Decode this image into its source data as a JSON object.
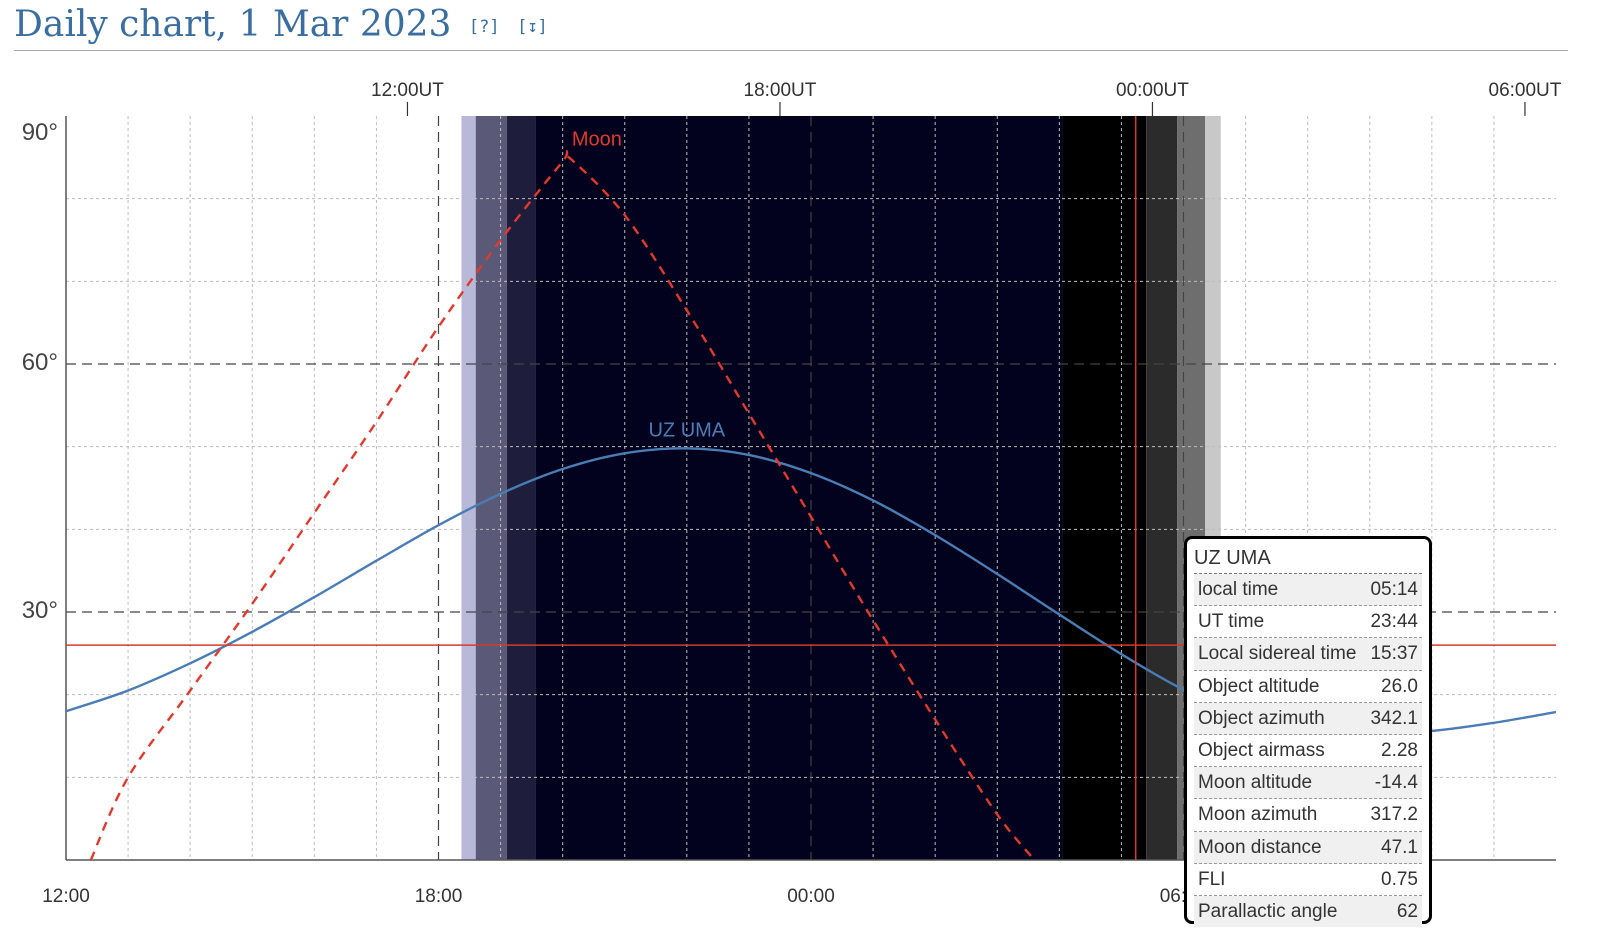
{
  "header": {
    "title": "Daily chart, 1 Mar 2023",
    "help_link": "[?]",
    "download_link": "[↧]"
  },
  "chart_data": {
    "type": "line",
    "title": "Daily chart, 1 Mar 2023",
    "x_unit": "hours (local time, from 12:00 local)",
    "xlim": [
      0,
      24
    ],
    "ylim": [
      0,
      90
    ],
    "bottom_ticks": [
      "12:00",
      "18:00",
      "00:00",
      "06:00"
    ],
    "top_ticks": [
      "12:00UT",
      "18:00UT",
      "00:00UT",
      "06:00UT"
    ],
    "y_ticks": [
      "30°",
      "60°",
      "90°"
    ],
    "series": [
      {
        "name": "UZ UMA",
        "color": "#4a7db5",
        "style": "solid",
        "x": [
          0,
          1,
          2,
          3,
          4,
          5,
          6,
          7,
          8,
          9,
          10,
          11,
          12,
          13,
          14,
          15,
          16,
          17,
          18,
          19,
          20,
          21,
          22,
          23,
          24
        ],
        "y": [
          18.0,
          20.5,
          23.8,
          27.6,
          31.8,
          36.2,
          40.5,
          44.3,
          47.3,
          49.2,
          49.8,
          49.0,
          46.8,
          43.5,
          39.3,
          34.6,
          29.7,
          24.9,
          20.6,
          17.4,
          15.6,
          15.2,
          15.6,
          16.6,
          17.9
        ]
      },
      {
        "name": "Moon",
        "color": "#e03a2e",
        "style": "dashed",
        "x": [
          0.4,
          1,
          2,
          3,
          4,
          5,
          6,
          7,
          8,
          8.1,
          9,
          10,
          11,
          12,
          13,
          14,
          15,
          15.6
        ],
        "y": [
          0,
          10,
          20.5,
          31,
          42,
          53,
          64.5,
          75,
          84.5,
          85,
          78,
          66.5,
          54,
          41.5,
          29,
          17,
          5.5,
          0
        ]
      }
    ],
    "twilight_bands": [
      {
        "from": 6.37,
        "to": 6.6,
        "color": "#b8b8d8"
      },
      {
        "from": 6.6,
        "to": 7.1,
        "color": "#5a5a78"
      },
      {
        "from": 7.1,
        "to": 7.57,
        "color": "#1e1e3c"
      },
      {
        "from": 7.57,
        "to": 16.05,
        "color": "#02021e"
      },
      {
        "from": 16.05,
        "to": 17.4,
        "color": "#000000"
      },
      {
        "from": 17.4,
        "to": 17.9,
        "color": "#2b2b2b"
      },
      {
        "from": 17.9,
        "to": 18.35,
        "color": "#6e6e6e"
      },
      {
        "from": 18.35,
        "to": 18.6,
        "color": "#c8c8c8"
      }
    ],
    "cursor": {
      "x": 17.23,
      "altitude": 26.0
    },
    "grid": true
  },
  "tooltip": {
    "title": "UZ UMA",
    "rows": [
      {
        "label": "local time",
        "value": "05:14"
      },
      {
        "label": "UT time",
        "value": "23:44"
      },
      {
        "label": "Local sidereal time",
        "value": "15:37"
      },
      {
        "label": "Object altitude",
        "value": "26.0"
      },
      {
        "label": "Object azimuth",
        "value": "342.1"
      },
      {
        "label": "Object airmass",
        "value": "2.28"
      },
      {
        "label": "Moon altitude",
        "value": "-14.4"
      },
      {
        "label": "Moon azimuth",
        "value": "317.2"
      },
      {
        "label": "Moon distance",
        "value": "47.1"
      },
      {
        "label": "FLI",
        "value": "0.75"
      },
      {
        "label": "Parallactic angle",
        "value": "62"
      }
    ]
  }
}
